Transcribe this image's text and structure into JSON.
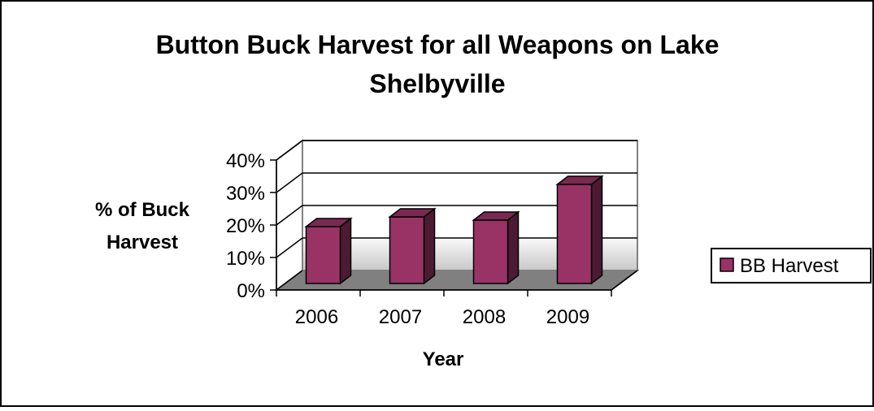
{
  "chart_data": {
    "type": "bar",
    "title_lines": [
      "Button Buck Harvest for all Weapons on Lake",
      "Shelbyville"
    ],
    "xlabel": "Year",
    "ylabel_lines": [
      "% of Buck",
      "Harvest"
    ],
    "categories": [
      "2006",
      "2007",
      "2008",
      "2009"
    ],
    "series": [
      {
        "name": "BB Harvest",
        "values": [
          0.19,
          0.22,
          0.21,
          0.32
        ],
        "color": "#993366"
      }
    ],
    "ylim": [
      0,
      0.4
    ],
    "yticks": [
      0,
      0.1,
      0.2,
      0.3,
      0.4
    ],
    "ytick_labels": [
      "0%",
      "10%",
      "20%",
      "30%",
      "40%"
    ],
    "grid": true,
    "legend_position": "right",
    "style": "3d-column"
  }
}
